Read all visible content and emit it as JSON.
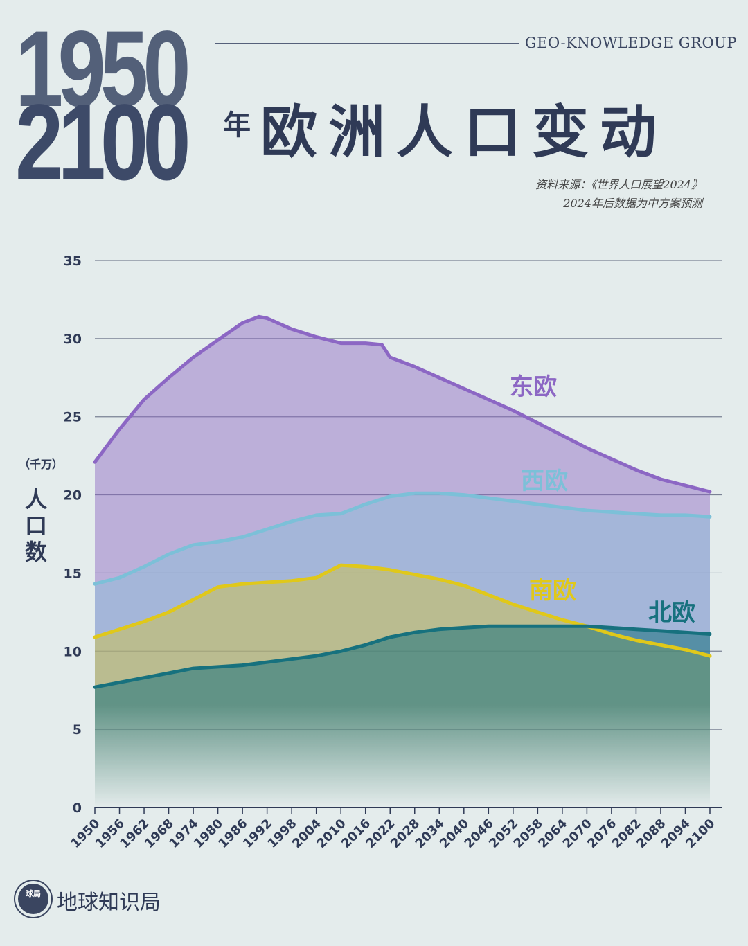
{
  "header": {
    "year_start": "1950",
    "year_end": "2100",
    "year_suffix": "年",
    "title": "欧洲人口变动",
    "brand": "GEO-KNOWLEDGE GROUP",
    "source_line1": "资料来源：《世界人口展望2024》",
    "source_line2": "2024年后数据为中方案预测"
  },
  "axis": {
    "unit": "（千万）",
    "label": "人口数"
  },
  "footer": {
    "logo_badge": "球局",
    "logo_name": "地球知识局"
  },
  "colors": {
    "eastern": "#8c67c4",
    "western": "#7cc0d8",
    "southern": "#e0c81a",
    "northern": "#17717e",
    "axis_text": "#2f3a56",
    "grid": "#7a8294"
  },
  "chart_data": {
    "type": "area",
    "title": "1950-2100年欧洲人口变动",
    "xlabel": "",
    "ylabel": "人口数（千万）",
    "ylim": [
      0,
      35
    ],
    "yticks": [
      0,
      5,
      10,
      15,
      20,
      25,
      30,
      35
    ],
    "xlim": [
      1950,
      2100
    ],
    "xticks": [
      1950,
      1956,
      1962,
      1968,
      1974,
      1980,
      1986,
      1992,
      1998,
      2004,
      2010,
      2016,
      2022,
      2028,
      2034,
      2040,
      2046,
      2052,
      2058,
      2064,
      2070,
      2076,
      2082,
      2088,
      2094,
      2100
    ],
    "grid": true,
    "series": [
      {
        "name": "东欧",
        "color": "#8c67c4",
        "x": [
          1950,
          1956,
          1962,
          1968,
          1974,
          1980,
          1986,
          1990,
          1992,
          1998,
          2004,
          2010,
          2016,
          2020,
          2022,
          2028,
          2034,
          2040,
          2046,
          2052,
          2058,
          2064,
          2070,
          2076,
          2082,
          2088,
          2094,
          2100
        ],
        "values": [
          22.1,
          24.2,
          26.1,
          27.5,
          28.8,
          29.9,
          31.0,
          31.4,
          31.3,
          30.6,
          30.1,
          29.7,
          29.7,
          29.6,
          28.8,
          28.2,
          27.5,
          26.8,
          26.1,
          25.4,
          24.6,
          23.8,
          23.0,
          22.3,
          21.6,
          21.0,
          20.6,
          20.2
        ]
      },
      {
        "name": "西欧",
        "color": "#7cc0d8",
        "x": [
          1950,
          1956,
          1962,
          1968,
          1974,
          1980,
          1986,
          1992,
          1998,
          2004,
          2010,
          2016,
          2022,
          2028,
          2034,
          2040,
          2046,
          2052,
          2058,
          2064,
          2070,
          2076,
          2082,
          2088,
          2094,
          2100
        ],
        "values": [
          14.3,
          14.7,
          15.4,
          16.2,
          16.8,
          17.0,
          17.3,
          17.8,
          18.3,
          18.7,
          18.8,
          19.4,
          19.9,
          20.1,
          20.1,
          20.0,
          19.8,
          19.6,
          19.4,
          19.2,
          19.0,
          18.9,
          18.8,
          18.7,
          18.7,
          18.6
        ]
      },
      {
        "name": "南欧",
        "color": "#e0c81a",
        "x": [
          1950,
          1956,
          1962,
          1968,
          1974,
          1980,
          1986,
          1992,
          1998,
          2004,
          2010,
          2016,
          2022,
          2028,
          2034,
          2040,
          2046,
          2052,
          2058,
          2064,
          2070,
          2076,
          2082,
          2088,
          2094,
          2100
        ],
        "values": [
          10.9,
          11.4,
          11.9,
          12.5,
          13.3,
          14.1,
          14.3,
          14.4,
          14.5,
          14.7,
          15.5,
          15.4,
          15.2,
          14.9,
          14.6,
          14.2,
          13.6,
          13.0,
          12.5,
          12.0,
          11.6,
          11.1,
          10.7,
          10.4,
          10.1,
          9.7
        ]
      },
      {
        "name": "北欧",
        "color": "#17717e",
        "x": [
          1950,
          1956,
          1962,
          1968,
          1974,
          1980,
          1986,
          1992,
          1998,
          2004,
          2010,
          2016,
          2022,
          2028,
          2034,
          2040,
          2046,
          2052,
          2058,
          2064,
          2070,
          2076,
          2082,
          2088,
          2094,
          2100
        ],
        "values": [
          7.7,
          8.0,
          8.3,
          8.6,
          8.9,
          9.0,
          9.1,
          9.3,
          9.5,
          9.7,
          10.0,
          10.4,
          10.9,
          11.2,
          11.4,
          11.5,
          11.6,
          11.6,
          11.6,
          11.6,
          11.6,
          11.5,
          11.4,
          11.3,
          11.2,
          11.1
        ]
      }
    ],
    "series_labels": [
      "东欧",
      "西欧",
      "南欧",
      "北欧"
    ]
  }
}
